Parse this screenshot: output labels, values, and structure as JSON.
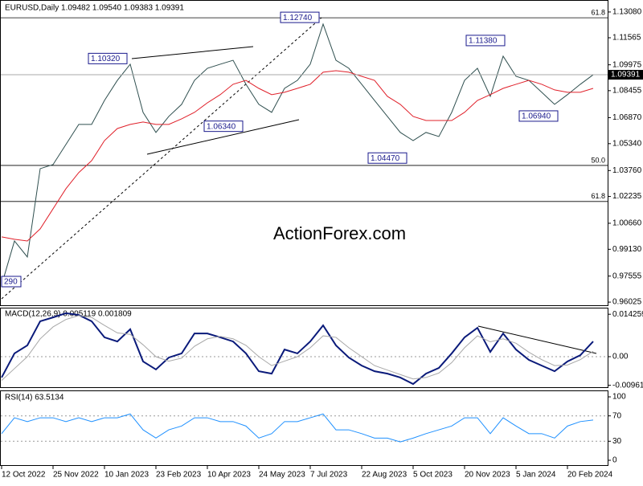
{
  "chart_data": [
    {
      "type": "line",
      "title": "EURUSD,Daily  1.09482 1.09540 1.09383 1.09391",
      "watermark": "ActionForex.com",
      "price_label": "1.09391",
      "categories": [
        "12 Oct 2022",
        null,
        null,
        null,
        "25 Nov 2022",
        null,
        null,
        null,
        "10 Jan 2023",
        null,
        null,
        null,
        "23 Feb 2023",
        null,
        null,
        null,
        "10 Apr 2023",
        null,
        null,
        null,
        "24 May 2023",
        null,
        null,
        null,
        "7 Jul 2023",
        null,
        null,
        null,
        "22 Aug 2023",
        null,
        null,
        null,
        "5 Oct 2023",
        null,
        null,
        null,
        "20 Nov 2023",
        null,
        null,
        null,
        "5 Jan 2024",
        null,
        null,
        null,
        "20 Feb 2024",
        null,
        null
      ],
      "series": [
        {
          "color": "#2f4f4f",
          "values": [
            0.9703,
            0.9962,
            0.9868,
            1.0387,
            1.0411,
            1.0529,
            1.0647,
            1.0647,
            1.0788,
            1.0906,
            1.1001,
            1.0718,
            1.06,
            1.0694,
            1.0765,
            1.0906,
            1.0977,
            1.1001,
            1.1024,
            1.0883,
            1.0765,
            1.0718,
            1.0859,
            1.0906,
            1.1001,
            1.1237,
            1.1024,
            1.0977,
            1.0883,
            1.0788,
            1.0694,
            1.06,
            1.0552,
            1.06,
            1.0576,
            1.0718,
            1.0906,
            1.0977,
            1.0812,
            1.1048,
            1.093,
            1.0906,
            1.0836,
            1.0765,
            1.0822,
            1.0883,
            1.0939
          ]
        },
        {
          "color": "#e0202a",
          "values": [
            0.9986,
            0.9972,
            0.9962,
            1.0033,
            1.0151,
            1.0269,
            1.0364,
            1.0434,
            1.0552,
            1.0623,
            1.0647,
            1.0661,
            1.0647,
            1.0647,
            1.068,
            1.0718,
            1.0774,
            1.0822,
            1.0883,
            1.0906,
            1.0859,
            1.0822,
            1.0836,
            1.0859,
            1.0883,
            1.0954,
            1.0963,
            1.0954,
            1.093,
            1.0906,
            1.0812,
            1.0765,
            1.0694,
            1.067,
            1.067,
            1.067,
            1.0718,
            1.0788,
            1.0822,
            1.0859,
            1.0883,
            1.0906,
            1.0883,
            1.085,
            1.0836,
            1.0836,
            1.0859
          ]
        }
      ],
      "annotations": [
        {
          "label": "1.10320",
          "value": 1.1032
        },
        {
          "label": "1.12740",
          "value": 1.1274
        },
        {
          "label": "1.06340",
          "value": 1.0634
        },
        {
          "label": "1.04470",
          "value": 1.0447
        },
        {
          "label": "1.11380",
          "value": 1.1138
        },
        {
          "label": "1.06940",
          "value": 1.0694
        },
        {
          "label": "290"
        }
      ],
      "levels": [
        {
          "label": "61.8",
          "value": 1.1274
        },
        {
          "label": "50.0",
          "value": 1.0406
        },
        {
          "label": "61.8",
          "value": 1.0194
        }
      ],
      "ylim": [
        0.9584,
        1.1369
      ],
      "yticks": [
        {
          "value": 1.1308,
          "label": "1.13080"
        },
        {
          "value": 1.11565,
          "label": "1.11565"
        },
        1.09975,
        1.08455,
        {
          "value": 1.0687,
          "label": "1.06870"
        },
        {
          "value": 1.0534,
          "label": "1.05340"
        },
        {
          "value": 1.0376,
          "label": "1.03760"
        },
        1.02235,
        {
          "value": 1.0066,
          "label": "1.00660"
        },
        {
          "value": 0.9913,
          "label": "0.99130"
        },
        0.97555,
        0.96025
      ]
    },
    {
      "type": "line",
      "title": "MACD(12,26,9) 0.005119 0.001809",
      "series": [
        {
          "color": "#0a1a7a",
          "values": [
            -0.007,
            0.0011,
            0.0038,
            0.0119,
            0.0132,
            0.0146,
            0.014,
            0.0119,
            0.0065,
            0.0051,
            0.0092,
            -0.0016,
            -0.0043,
            -0.0003,
            0.0011,
            0.0078,
            0.0078,
            0.0065,
            0.0051,
            0.0011,
            -0.0049,
            -0.0057,
            0.0024,
            0.0011,
            0.0051,
            0.0105,
            0.0038,
            -0.0003,
            -0.003,
            -0.0049,
            -0.0057,
            -0.007,
            -0.0092,
            -0.0057,
            -0.0038,
            0.0011,
            0.0065,
            0.0097,
            0.0016,
            0.0078,
            0.0024,
            -0.0011,
            -0.003,
            -0.0049,
            -0.0016,
            0.0005,
            0.0051
          ]
        },
        {
          "color": "#a8a8a8",
          "values": [
            -0.008,
            -0.004,
            0.0,
            0.006,
            0.01,
            0.0125,
            0.0138,
            0.0132,
            0.0105,
            0.008,
            0.0075,
            0.004,
            0.0,
            -0.0015,
            -0.0005,
            0.0035,
            0.006,
            0.0068,
            0.006,
            0.0038,
            0.0,
            -0.003,
            -0.0015,
            0.0,
            0.003,
            0.007,
            0.0065,
            0.003,
            0.0,
            -0.003,
            -0.0045,
            -0.006,
            -0.0075,
            -0.007,
            -0.0055,
            -0.002,
            0.003,
            0.007,
            0.005,
            0.006,
            0.0045,
            0.0015,
            -0.001,
            -0.003,
            -0.0028,
            -0.001,
            0.0018
          ]
        }
      ],
      "reference_lines": [
        0
      ],
      "ylim": [
        -0.01026,
        0.01647
      ],
      "yticks": [
        0.014259,
        {
          "value": 0,
          "label": "0.00"
        },
        -0.009615
      ]
    },
    {
      "type": "line",
      "title": "RSI(14) 63.5134",
      "series": [
        {
          "color": "#1e90ff",
          "values": [
            42,
            67,
            61,
            67,
            67,
            61,
            67,
            61,
            67,
            67,
            73,
            48,
            35,
            48,
            54,
            67,
            67,
            61,
            61,
            54,
            35,
            42,
            61,
            61,
            67,
            73,
            48,
            48,
            42,
            35,
            35,
            29,
            35,
            42,
            48,
            54,
            67,
            67,
            42,
            67,
            54,
            42,
            42,
            35,
            54,
            61,
            63.5
          ]
        }
      ],
      "reference_lines": [
        30,
        70
      ],
      "ylim": [
        -8.9,
        108.9
      ],
      "yticks": [
        0,
        30,
        70,
        100
      ]
    }
  ]
}
